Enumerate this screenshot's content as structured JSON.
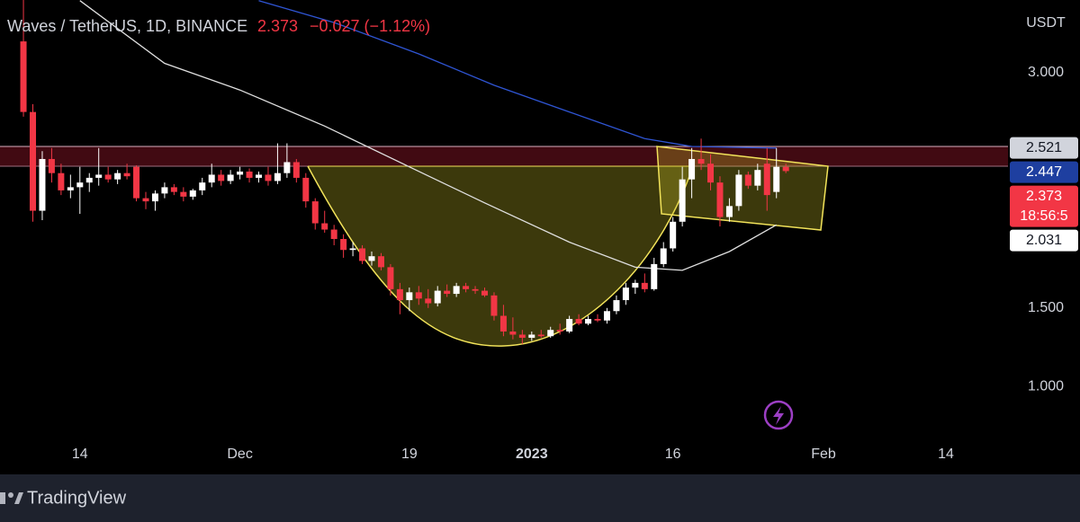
{
  "chart_data": {
    "type": "candlestick",
    "title": "Waves / TetherUS, 1D, BINANCE",
    "last_price": "2.373",
    "change": "−0.027 (−1.12%)",
    "y_axis_label": "USDT",
    "footer": "TradingView",
    "up_color": "#ffffff",
    "down_color": "#f23645",
    "x": [
      0,
      1,
      2,
      3,
      4,
      5,
      6,
      7,
      8,
      9,
      10,
      11,
      12,
      13,
      14,
      15,
      16,
      17,
      18,
      19,
      20,
      21,
      22,
      23,
      24,
      25,
      26,
      27,
      28,
      29,
      30,
      31,
      32,
      33,
      34,
      35,
      36,
      37,
      38,
      39,
      40,
      41,
      42,
      43,
      44,
      45,
      46,
      47,
      48,
      49,
      50,
      51,
      52,
      53,
      54,
      55,
      56,
      57,
      58,
      59,
      60,
      61,
      62,
      63,
      64,
      65,
      66,
      67,
      68,
      69,
      70,
      71,
      72,
      73,
      74,
      75,
      76,
      77,
      78,
      79,
      80,
      81
    ],
    "open": [
      3.2,
      2.75,
      2.12,
      2.45,
      2.36,
      2.25,
      2.27,
      2.3,
      2.33,
      2.35,
      2.32,
      2.36,
      2.4,
      2.2,
      2.18,
      2.23,
      2.27,
      2.24,
      2.21,
      2.25,
      2.3,
      2.35,
      2.31,
      2.35,
      2.37,
      2.33,
      2.35,
      2.31,
      2.36,
      2.43,
      2.33,
      2.18,
      2.04,
      2.0,
      1.94,
      1.87,
      1.88,
      1.8,
      1.83,
      1.76,
      1.62,
      1.55,
      1.6,
      1.56,
      1.53,
      1.61,
      1.59,
      1.64,
      1.62,
      1.61,
      1.58,
      1.45,
      1.35,
      1.33,
      1.31,
      1.33,
      1.32,
      1.36,
      1.35,
      1.43,
      1.4,
      1.43,
      1.42,
      1.48,
      1.55,
      1.63,
      1.66,
      1.62,
      1.78,
      1.88,
      2.05,
      2.32,
      2.45,
      2.42,
      2.3,
      2.08,
      2.15,
      2.35,
      2.28,
      2.42,
      2.24,
      2.4
    ],
    "high": [
      3.5,
      2.8,
      2.5,
      2.52,
      2.42,
      2.35,
      2.4,
      2.36,
      2.52,
      2.4,
      2.38,
      2.42,
      2.41,
      2.24,
      2.25,
      2.3,
      2.29,
      2.27,
      2.26,
      2.33,
      2.42,
      2.38,
      2.38,
      2.4,
      2.39,
      2.37,
      2.4,
      2.55,
      2.55,
      2.45,
      2.36,
      2.2,
      2.12,
      2.03,
      1.97,
      1.92,
      1.9,
      1.86,
      1.85,
      1.78,
      1.66,
      1.63,
      1.64,
      1.62,
      1.64,
      1.65,
      1.66,
      1.66,
      1.64,
      1.63,
      1.6,
      1.52,
      1.44,
      1.36,
      1.35,
      1.36,
      1.38,
      1.4,
      1.45,
      1.46,
      1.45,
      1.46,
      1.5,
      1.58,
      1.66,
      1.68,
      1.72,
      1.82,
      1.92,
      2.08,
      2.4,
      2.52,
      2.58,
      2.48,
      2.34,
      2.2,
      2.38,
      2.37,
      2.42,
      2.52,
      2.52,
      2.42
    ],
    "low": [
      2.72,
      2.05,
      2.06,
      2.3,
      2.22,
      2.2,
      2.1,
      2.24,
      2.28,
      2.3,
      2.29,
      2.32,
      2.18,
      2.13,
      2.12,
      2.2,
      2.22,
      2.18,
      2.19,
      2.22,
      2.27,
      2.28,
      2.29,
      2.32,
      2.3,
      2.3,
      2.28,
      2.29,
      2.33,
      2.3,
      2.14,
      2.0,
      1.98,
      1.9,
      1.82,
      1.83,
      1.78,
      1.77,
      1.74,
      1.58,
      1.46,
      1.48,
      1.52,
      1.5,
      1.51,
      1.57,
      1.57,
      1.6,
      1.59,
      1.57,
      1.42,
      1.32,
      1.3,
      1.27,
      1.29,
      1.31,
      1.31,
      1.33,
      1.34,
      1.39,
      1.39,
      1.41,
      1.4,
      1.46,
      1.52,
      1.59,
      1.6,
      1.61,
      1.76,
      1.86,
      2.02,
      2.2,
      2.38,
      2.25,
      2.02,
      2.05,
      2.12,
      2.26,
      2.25,
      2.12,
      2.2,
      2.36
    ],
    "close": [
      2.75,
      2.12,
      2.45,
      2.36,
      2.25,
      2.27,
      2.3,
      2.33,
      2.35,
      2.32,
      2.36,
      2.34,
      2.2,
      2.18,
      2.23,
      2.27,
      2.24,
      2.21,
      2.25,
      2.3,
      2.35,
      2.31,
      2.35,
      2.37,
      2.33,
      2.35,
      2.31,
      2.36,
      2.43,
      2.33,
      2.18,
      2.04,
      2.0,
      1.94,
      1.87,
      1.88,
      1.8,
      1.83,
      1.76,
      1.62,
      1.55,
      1.6,
      1.56,
      1.53,
      1.61,
      1.59,
      1.64,
      1.62,
      1.61,
      1.58,
      1.45,
      1.35,
      1.33,
      1.31,
      1.33,
      1.32,
      1.36,
      1.35,
      1.43,
      1.4,
      1.43,
      1.42,
      1.48,
      1.55,
      1.63,
      1.66,
      1.62,
      1.78,
      1.88,
      2.05,
      2.32,
      2.45,
      2.42,
      2.3,
      2.08,
      2.15,
      2.35,
      2.28,
      2.38,
      2.22,
      2.4,
      2.373
    ],
    "lines": [
      {
        "color": "#e0e0e0",
        "x": [
          6,
          15,
          23,
          32,
          41,
          49,
          58,
          65,
          70,
          75,
          80
        ],
        "values": [
          3.46,
          3.06,
          2.89,
          2.66,
          2.4,
          2.17,
          1.92,
          1.76,
          1.74,
          1.86,
          2.03
        ]
      },
      {
        "color": "#2f55d4",
        "x": [
          25,
          33,
          42,
          50,
          58,
          66,
          71,
          80
        ],
        "values": [
          3.46,
          3.32,
          3.12,
          2.92,
          2.75,
          2.58,
          2.53,
          2.52
        ]
      }
    ],
    "price_labels": [
      {
        "value": 2.521,
        "color": "#d1d4dc",
        "text_color": "#131722"
      },
      {
        "value": 2.447,
        "color": "#1e3fa0",
        "text_color": "#ffffff"
      },
      {
        "value": 2.373,
        "color": "#f23645",
        "text_color": "#ffffff",
        "countdown": "18:56:5"
      },
      {
        "value": 2.031,
        "color": "#ffffff",
        "text_color": "#131722"
      }
    ],
    "xlim": [
      -2.49,
      104.6
    ],
    "ylim": [
      0.456,
      3.464
    ],
    "yticks": [
      {
        "value": 1,
        "label": "1.000"
      },
      {
        "value": 1.5,
        "label": "1.500"
      },
      {
        "value": 3,
        "label": "3.000"
      }
    ],
    "xticks": [
      {
        "value": 6,
        "label": "14"
      },
      {
        "value": 23,
        "label": "Dec"
      },
      {
        "value": 41,
        "label": "19"
      },
      {
        "value": 54,
        "label": "2023"
      },
      {
        "value": 69,
        "label": "16"
      },
      {
        "value": 85,
        "label": "Feb"
      },
      {
        "value": 98,
        "label": "14"
      }
    ]
  }
}
